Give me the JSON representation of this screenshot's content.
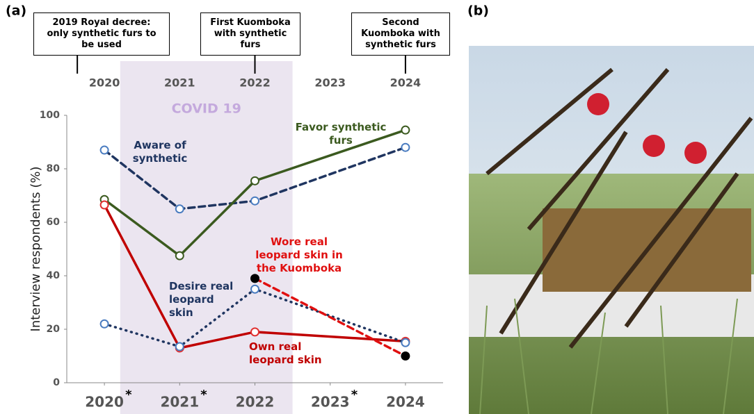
{
  "panel_labels": [
    "(a)",
    "(b)"
  ],
  "chart_data": {
    "type": "line",
    "y_label": "Interview respondents (%)",
    "x": [
      2020,
      2021,
      2022,
      2023,
      2024
    ],
    "xlim": [
      2019.5,
      2024.5
    ],
    "xticks": [
      2020,
      2021,
      2022,
      2023,
      2024
    ],
    "xtick_notes": [
      "*",
      "*",
      null,
      "*",
      null
    ],
    "ylim": [
      0,
      100
    ],
    "yticks": [
      0,
      20,
      40,
      60,
      80,
      100
    ],
    "grid": false,
    "shaded_region": {
      "label": "COVID 19",
      "from": 2020.21,
      "to": 2022.5,
      "color": "#ebe5f0",
      "label_color": "#c4a9dd"
    },
    "annotations": [
      {
        "text": "2019 Royal decree:\nonly synthetic furs to\nbe used",
        "x": 2019.64
      },
      {
        "text": "First Kuomboka\nwith synthetic\nfurs",
        "x": 2022
      },
      {
        "text": "Second\nKuomboka with\nsynthetic furs",
        "x": 2024
      }
    ],
    "series": [
      {
        "name": "Aware of\nsynthetic",
        "color": "#1f3560",
        "marker_color": "#4a7cc0",
        "marker_fill": "#ffffff",
        "style": "dashed",
        "values": [
          87,
          65,
          68,
          null,
          88
        ]
      },
      {
        "name": "Favor synthetic\nfurs",
        "color": "#3b5a1f",
        "marker_color": "#3b5a1f",
        "marker_fill": "#ffffff",
        "style": "solid",
        "values": [
          68.5,
          47.5,
          75.5,
          null,
          94.5
        ]
      },
      {
        "name": "Own real\nleopard skin",
        "color": "#c00000",
        "marker_color": "#e03030",
        "marker_fill": "#ffffff",
        "style": "solid",
        "values": [
          66.5,
          13,
          19,
          null,
          15.5
        ]
      },
      {
        "name": "Desire real\nleopard\nskin",
        "color": "#1f3560",
        "marker_color": "#4a7cc0",
        "marker_fill": "#ffffff",
        "style": "dotted",
        "values": [
          22,
          13.5,
          35,
          null,
          15
        ]
      },
      {
        "name": "Wore real\nleopard skin in\nthe Kuomboka",
        "color": "#e01010",
        "marker_color": "#000000",
        "marker_fill": "#000000",
        "style": "dashed",
        "values": [
          null,
          null,
          39,
          null,
          10
        ]
      }
    ]
  }
}
